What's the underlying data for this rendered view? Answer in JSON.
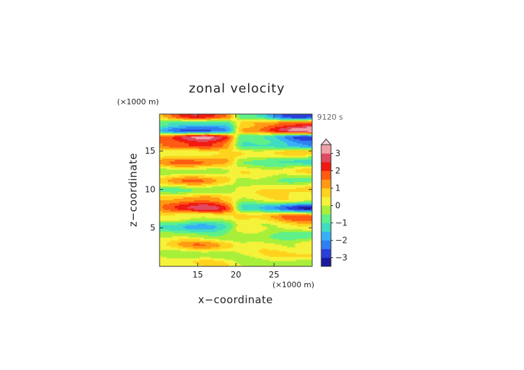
{
  "chart_data": {
    "type": "heatmap",
    "title": "zonal velocity",
    "xlabel": "x−coordinate",
    "ylabel": "z−coordinate",
    "x_unit": "(×1000 m)",
    "y_unit": "(×1000 m)",
    "time_label": "9120 s",
    "xlim": [
      10,
      30
    ],
    "ylim": [
      0,
      19.8
    ],
    "x_ticks": [
      15,
      20,
      25
    ],
    "y_ticks": [
      5,
      10,
      15
    ],
    "colorbar": {
      "range": [
        -3.5,
        3.5
      ],
      "ticks": [
        3,
        2,
        1,
        0,
        -1,
        -2,
        -3
      ],
      "tick_labels": [
        "3",
        "2",
        "1",
        "0",
        "−1",
        "−2",
        "−3"
      ],
      "colors": [
        "#1a1a9e",
        "#2a40d8",
        "#2f7ff0",
        "#38b0f5",
        "#40dcc0",
        "#5ef08a",
        "#a8ef3a",
        "#f4f23a",
        "#ffd21e",
        "#ff9a14",
        "#ff5a12",
        "#f01a12",
        "#e04a60",
        "#f0a0a8"
      ],
      "overflow_top": true
    },
    "z_levels": [
      {
        "z": 0.5,
        "left": 0.4,
        "right": -0.1
      },
      {
        "z": 1.5,
        "left": -0.3,
        "right": 0.5
      },
      {
        "z": 2.8,
        "left": 1.1,
        "right": 0.3
      },
      {
        "z": 4.0,
        "left": -0.2,
        "right": -0.9
      },
      {
        "z": 5.2,
        "left": -1.6,
        "right": 0.4
      },
      {
        "z": 6.5,
        "left": 0.3,
        "right": 1.5
      },
      {
        "z": 7.6,
        "left": 2.4,
        "right": -2.6
      },
      {
        "z": 8.8,
        "left": 1.2,
        "right": 0.3
      },
      {
        "z": 10.0,
        "left": -0.6,
        "right": 0.8
      },
      {
        "z": 11.2,
        "left": 1.4,
        "right": -0.7
      },
      {
        "z": 12.4,
        "left": -0.3,
        "right": 0.6
      },
      {
        "z": 13.6,
        "left": 1.6,
        "right": -1.3
      },
      {
        "z": 14.8,
        "left": 0.2,
        "right": 0.9
      },
      {
        "z": 15.8,
        "left": 1.9,
        "right": -1.8
      },
      {
        "z": 16.8,
        "left": 2.8,
        "right": -2.2
      },
      {
        "z": 17.7,
        "left": -2.6,
        "right": 3.1
      },
      {
        "z": 18.6,
        "left": -1.2,
        "right": 1.7
      },
      {
        "z": 19.5,
        "left": 2.0,
        "right": -2.4
      }
    ]
  }
}
